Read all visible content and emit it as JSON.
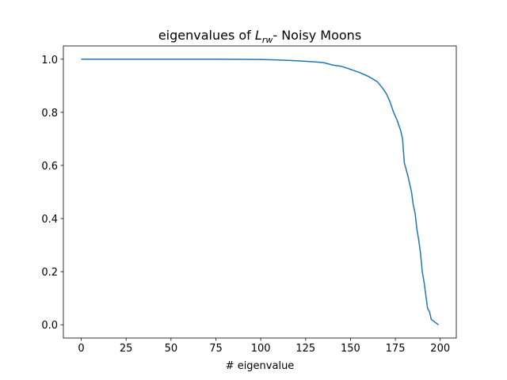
{
  "chart_data": {
    "type": "line",
    "title": {
      "text": "eigenvalues of ",
      "symbol": "L",
      "subscript": "rw",
      "rest": "- Noisy Moons"
    },
    "x_label": "# eigenvalue",
    "x": [
      0,
      25,
      50,
      75,
      100,
      110,
      120,
      130,
      135,
      140,
      145,
      150,
      155,
      160,
      165,
      168,
      170,
      172,
      174,
      176,
      178,
      179,
      180,
      182,
      184,
      185,
      186,
      187,
      188,
      189,
      190,
      191,
      192,
      193,
      194,
      195,
      196,
      198,
      199
    ],
    "series": [
      {
        "color": "#1f77b4",
        "values": [
          1.0,
          1.0,
          1.0,
          1.0,
          0.999,
          0.997,
          0.994,
          0.99,
          0.987,
          0.978,
          0.973,
          0.962,
          0.95,
          0.935,
          0.915,
          0.89,
          0.87,
          0.84,
          0.8,
          0.77,
          0.73,
          0.7,
          0.61,
          0.56,
          0.5,
          0.45,
          0.42,
          0.36,
          0.32,
          0.27,
          0.2,
          0.16,
          0.11,
          0.06,
          0.05,
          0.02,
          0.015,
          0.005,
          0.0
        ]
      }
    ],
    "xlim": [
      -9.95,
      208.95
    ],
    "ylim": [
      -0.05,
      1.05
    ],
    "xticks": [
      0,
      25,
      50,
      75,
      100,
      125,
      150,
      175,
      200
    ],
    "yticks": [
      {
        "value": 0,
        "label": "0.0"
      },
      0.2,
      0.4,
      0.6,
      0.8,
      {
        "value": 1,
        "label": "1.0"
      }
    ],
    "grid": false
  }
}
